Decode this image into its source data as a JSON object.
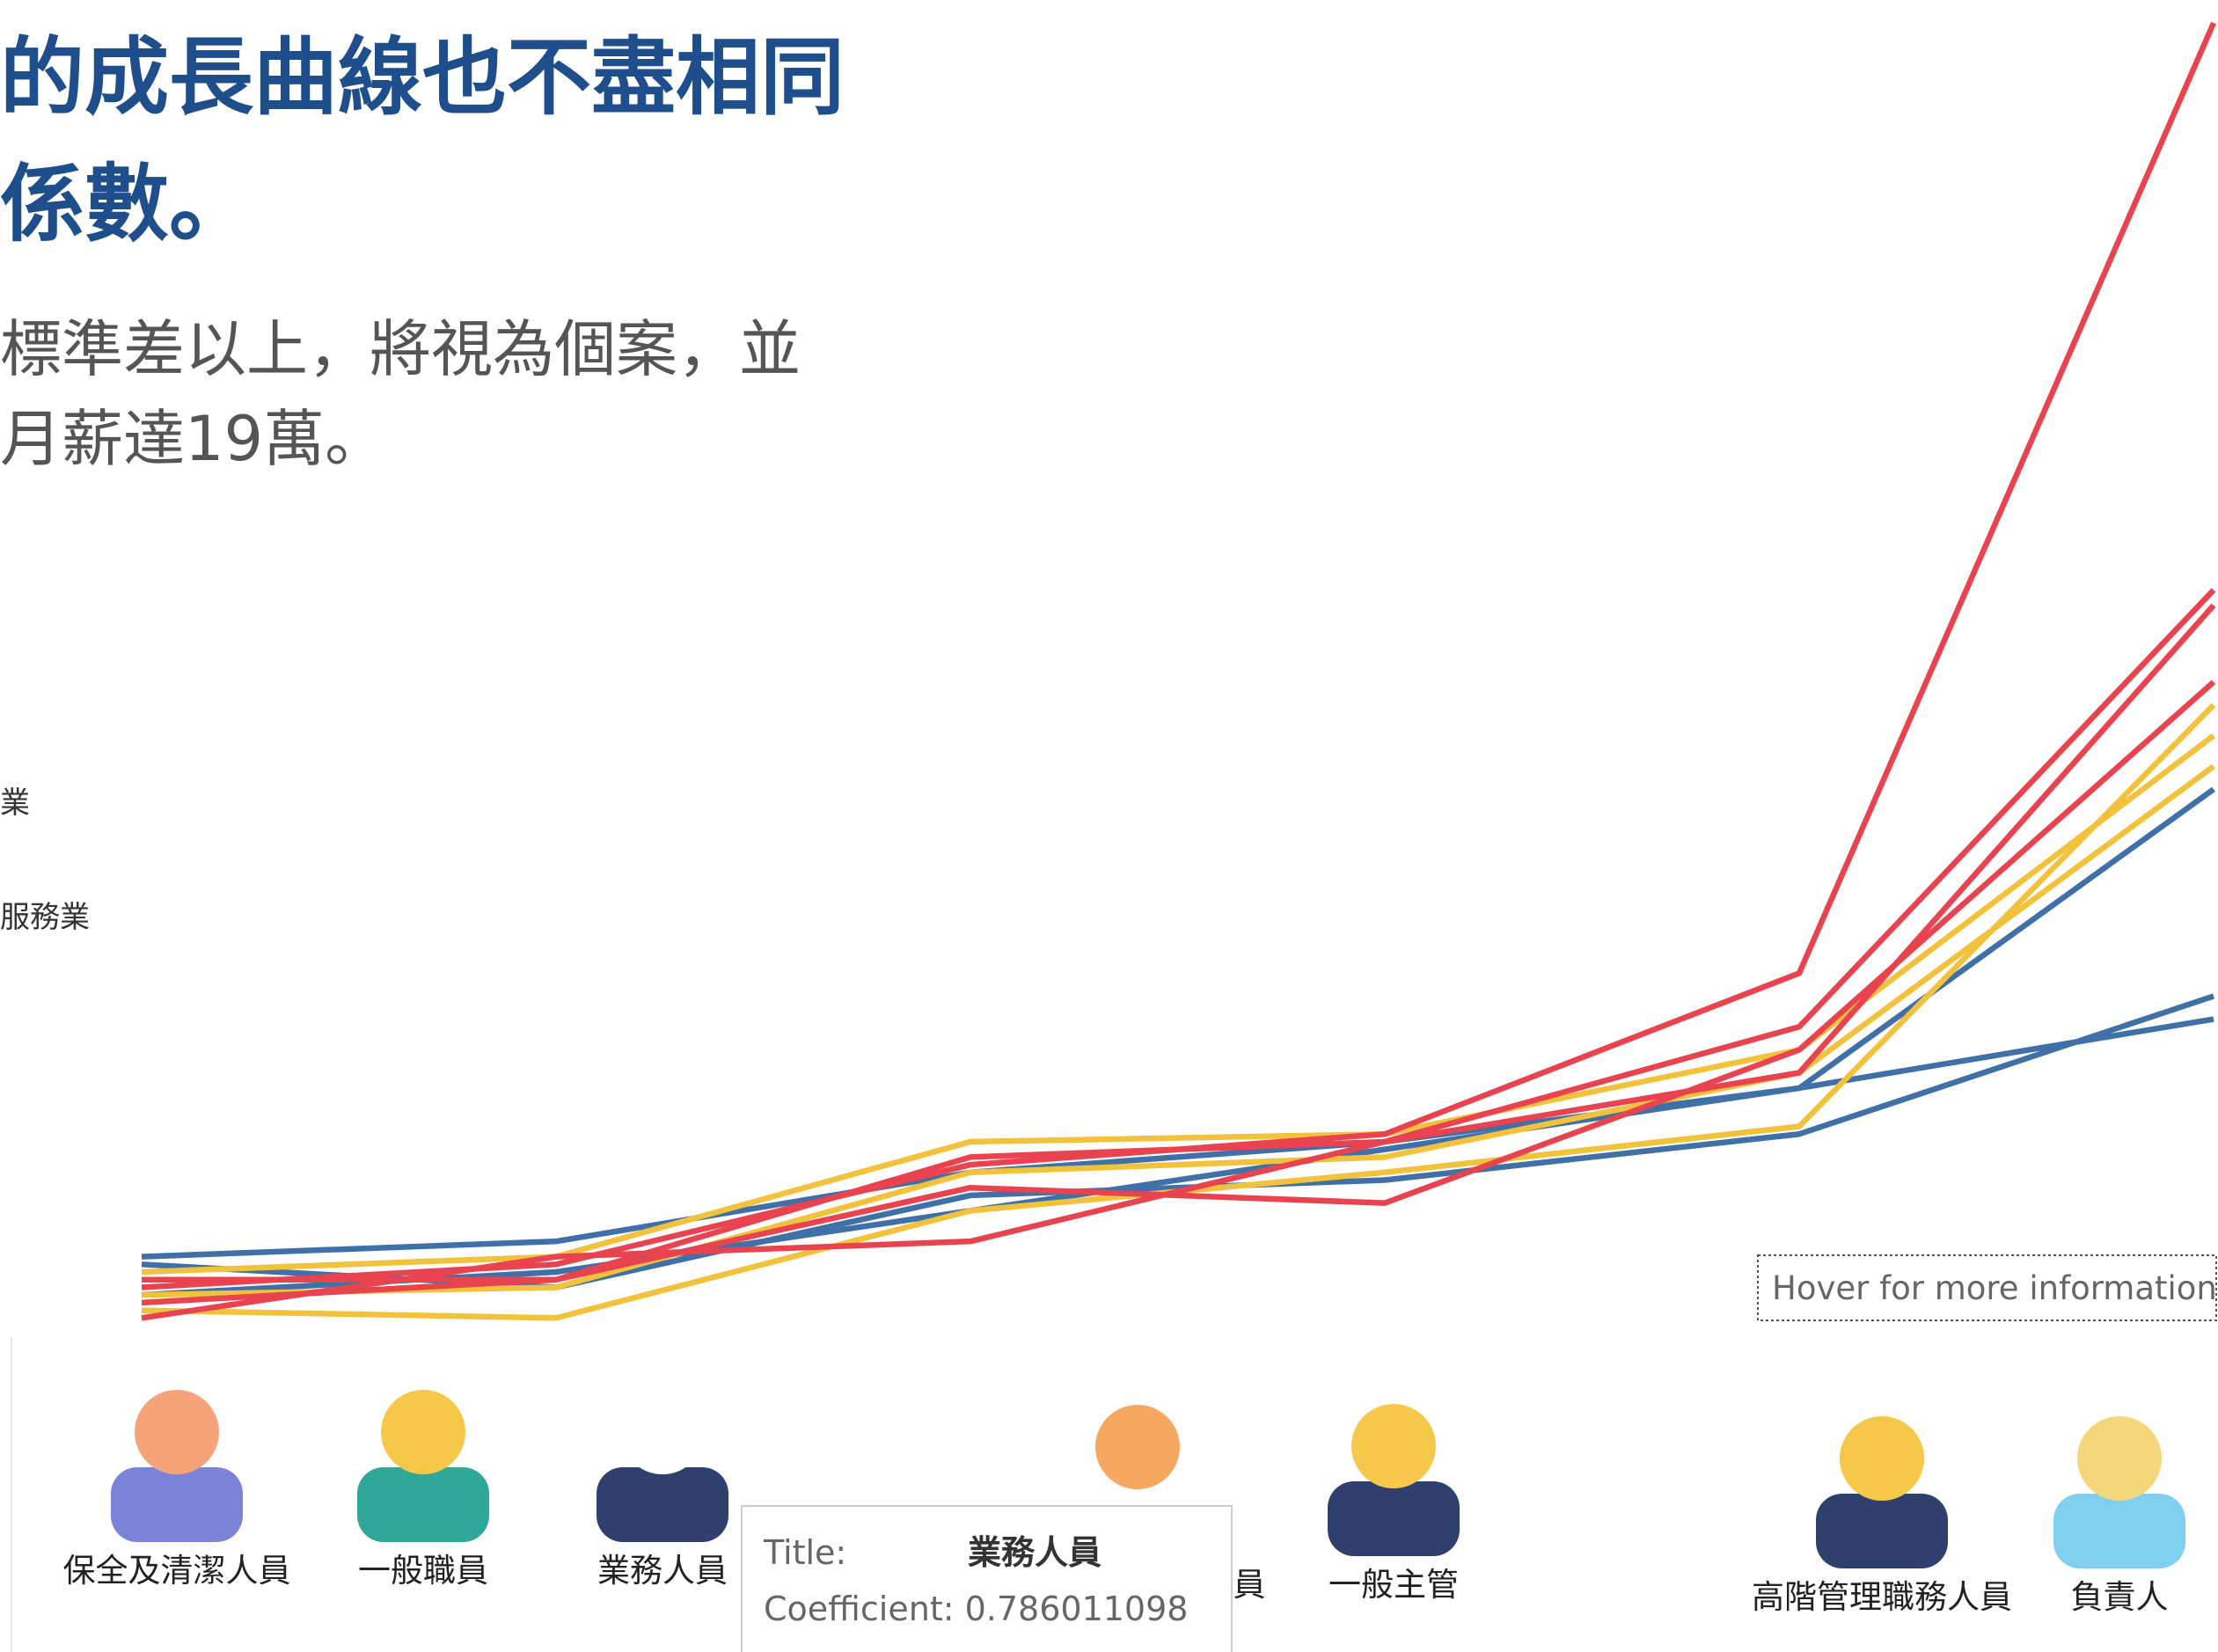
{
  "header": {
    "title_lines": [
      "的成長曲線也不盡相同",
      "係數。"
    ],
    "subtitle_lines": [
      "標準差以上，將視為個案，並",
      "月薪達19萬。"
    ]
  },
  "legend_fragments": [
    "業",
    "服務業"
  ],
  "chart_data": {
    "type": "line",
    "categories": [
      null,
      null,
      null,
      null,
      null,
      null
    ],
    "ylim": [
      2,
      19.3
    ],
    "series": [
      {
        "color": "#3f70a8",
        "values": [
          2.9,
          3.1,
          4.0,
          4.4,
          5.1,
          9.0
        ]
      },
      {
        "color": "#3f70a8",
        "values": [
          2.8,
          2.5,
          3.7,
          3.9,
          4.5,
          6.3
        ]
      },
      {
        "color": "#3f70a8",
        "values": [
          2.4,
          2.7,
          3.5,
          4.3,
          5.1,
          6.0
        ]
      },
      {
        "color": "#f3c23c",
        "values": [
          2.2,
          2.1,
          3.5,
          4.0,
          4.6,
          10.1
        ]
      },
      {
        "color": "#f3c23c",
        "values": [
          2.7,
          2.9,
          4.4,
          4.5,
          5.6,
          9.7
        ]
      },
      {
        "color": "#f3c23c",
        "values": [
          2.4,
          2.5,
          4.0,
          4.2,
          5.3,
          9.3
        ]
      },
      {
        "color": "#e8434f",
        "values": [
          2.5,
          2.8,
          4.1,
          4.5,
          6.6,
          19.0
        ]
      },
      {
        "color": "#e8434f",
        "values": [
          2.1,
          2.9,
          3.1,
          4.4,
          5.9,
          11.6
        ]
      },
      {
        "color": "#e8434f",
        "values": [
          2.3,
          2.6,
          3.8,
          3.6,
          5.6,
          10.4
        ]
      },
      {
        "color": "#e8434f",
        "values": [
          2.6,
          2.6,
          4.2,
          4.4,
          5.3,
          11.4
        ]
      }
    ]
  },
  "hover_hint": "Hover for more information",
  "roles": [
    "保全及清潔人員",
    "一般職員",
    "業務人員",
    "員",
    "一般主管",
    "高階管理職務人員",
    "負責人"
  ],
  "tooltip": {
    "title_label": "Title:",
    "title_value": "業務人員",
    "coef_label": "Coefficient:",
    "coef_value": 0.786011098
  }
}
